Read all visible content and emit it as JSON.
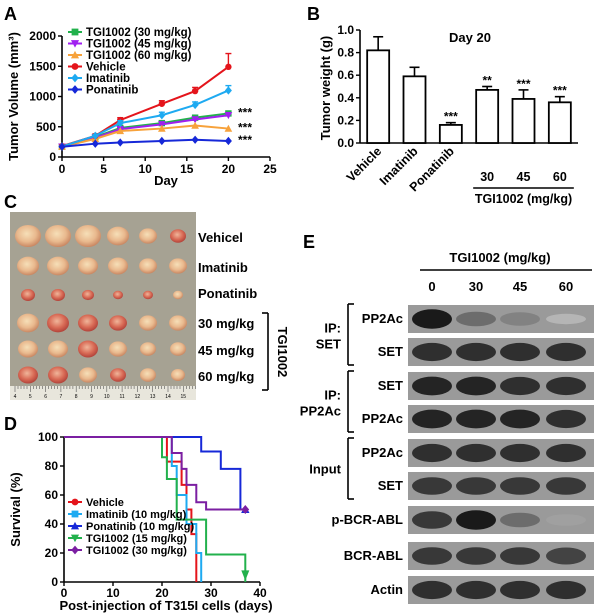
{
  "panels": {
    "A": "A",
    "B": "B",
    "C": "C",
    "D": "D",
    "E": "E"
  },
  "chart_data": [
    {
      "type": "line",
      "panel": "A",
      "xlabel": "Day",
      "ylabel": "Tumor Volume (mm³)",
      "xlim": [
        0,
        25
      ],
      "ylim": [
        0,
        2000
      ],
      "xticks": [
        "0",
        "5",
        "10",
        "15",
        "20",
        "25"
      ],
      "yticks": [
        "0",
        "500",
        "1000",
        "1500",
        "2000"
      ],
      "x": [
        0,
        4,
        7,
        12,
        16,
        20
      ],
      "series": [
        {
          "name": "TGI1002 (30 mg/kg)",
          "color": "#22b14c",
          "marker": "square",
          "values": [
            170,
            330,
            480,
            560,
            650,
            720
          ],
          "sig": "***"
        },
        {
          "name": "TGI1002 (45 mg/kg)",
          "color": "#a020f0",
          "marker": "tri-down",
          "values": [
            170,
            320,
            460,
            540,
            620,
            690
          ],
          "sig": ""
        },
        {
          "name": "TGI1002 (60 mg/kg)",
          "color": "#f7a23b",
          "marker": "tri-up",
          "values": [
            170,
            300,
            430,
            470,
            520,
            470
          ],
          "sig": "***"
        },
        {
          "name": "Vehicle",
          "color": "#e4141b",
          "marker": "circle",
          "values": [
            180,
            350,
            610,
            880,
            1090,
            1490
          ],
          "sig": ""
        },
        {
          "name": "Imatinib",
          "color": "#1eaaf1",
          "marker": "diamond",
          "values": [
            175,
            350,
            560,
            690,
            860,
            1100
          ],
          "sig": ""
        },
        {
          "name": "Ponatinib",
          "color": "#1628d8",
          "marker": "diamond",
          "values": [
            170,
            220,
            240,
            265,
            285,
            265
          ],
          "sig": "***"
        }
      ]
    },
    {
      "type": "bar",
      "panel": "B",
      "title": "Day 20",
      "ylabel": "Tumor weight (g)",
      "ylim": [
        0,
        1.0
      ],
      "yticks": [
        "0.0",
        "0.2",
        "0.4",
        "0.6",
        "0.8",
        "1.0"
      ],
      "categories": [
        "Vehicle",
        "Imatinib",
        "Ponatinib",
        "30",
        "45",
        "60"
      ],
      "values": [
        0.82,
        0.59,
        0.16,
        0.47,
        0.39,
        0.36
      ],
      "errors": [
        0.12,
        0.08,
        0.02,
        0.03,
        0.08,
        0.05
      ],
      "sig": [
        "",
        "",
        "***",
        "**",
        "***",
        "***"
      ],
      "group_label": "TGI1002 (mg/kg)"
    },
    {
      "type": "line",
      "panel": "D",
      "xlabel": "Post-injection of T315I cells (days)",
      "ylabel": "Survival (%)",
      "xlim": [
        0,
        40
      ],
      "ylim": [
        0,
        100
      ],
      "xticks": [
        "0",
        "10",
        "20",
        "30",
        "40"
      ],
      "yticks": [
        "0",
        "20",
        "40",
        "60",
        "80",
        "100"
      ],
      "series": [
        {
          "name": "Vehicle",
          "color": "#e4141b",
          "marker": "circle",
          "steps": [
            [
              0,
              100
            ],
            [
              21,
              100
            ],
            [
              21,
              83
            ],
            [
              24,
              83
            ],
            [
              24,
              67
            ],
            [
              25,
              67
            ],
            [
              25,
              50
            ],
            [
              26,
              50
            ],
            [
              26,
              33
            ],
            [
              27,
              33
            ],
            [
              27,
              17
            ],
            [
              27,
              0
            ]
          ]
        },
        {
          "name": "Imatinib (10 mg/kg)",
          "color": "#1eaaf1",
          "marker": "square",
          "steps": [
            [
              0,
              100
            ],
            [
              22,
              100
            ],
            [
              22,
              80
            ],
            [
              23,
              80
            ],
            [
              23,
              60
            ],
            [
              25,
              60
            ],
            [
              25,
              40
            ],
            [
              27,
              40
            ],
            [
              27,
              20
            ],
            [
              28,
              20
            ],
            [
              28,
              0
            ]
          ]
        },
        {
          "name": "Ponatinib (10 mg/kg)",
          "color": "#1628d8",
          "marker": "tri-up",
          "steps": [
            [
              0,
              100
            ],
            [
              28,
              100
            ],
            [
              28,
              90
            ],
            [
              32,
              90
            ],
            [
              32,
              78
            ],
            [
              36,
              78
            ],
            [
              36,
              50
            ],
            [
              37,
              50
            ]
          ]
        },
        {
          "name": "TGI1002 (15 mg/kg)",
          "color": "#22b14c",
          "marker": "tri-down",
          "steps": [
            [
              0,
              100
            ],
            [
              20,
              100
            ],
            [
              20,
              86
            ],
            [
              21,
              86
            ],
            [
              21,
              71
            ],
            [
              23,
              71
            ],
            [
              23,
              43
            ],
            [
              29,
              43
            ],
            [
              29,
              19
            ],
            [
              37,
              19
            ],
            [
              37,
              0
            ]
          ]
        },
        {
          "name": "TGI1002 (30 mg/kg)",
          "color": "#7b1fa2",
          "marker": "diamond",
          "steps": [
            [
              0,
              100
            ],
            [
              22,
              100
            ],
            [
              22,
              89
            ],
            [
              24,
              89
            ],
            [
              24,
              78
            ],
            [
              25,
              78
            ],
            [
              25,
              67
            ],
            [
              27,
              67
            ],
            [
              27,
              55
            ],
            [
              29,
              55
            ],
            [
              29,
              50
            ],
            [
              37,
              50
            ]
          ]
        }
      ]
    }
  ],
  "panelC": {
    "rows": [
      "Vehicel",
      "Imatinib",
      "Ponatinib",
      "30 mg/kg",
      "45 mg/kg",
      "60 mg/kg"
    ],
    "group_label": "TGI1002",
    "ruler_numbers": [
      "4",
      "5",
      "6",
      "7",
      "8",
      "9",
      "10",
      "11",
      "12",
      "13",
      "14",
      "15"
    ]
  },
  "panelE": {
    "header": "TGI1002 (mg/kg)",
    "lanes": [
      "0",
      "30",
      "45",
      "60"
    ],
    "groups": [
      {
        "label": [
          "IP:",
          "SET"
        ],
        "rows": [
          {
            "label": "PP2Ac",
            "intensity": [
              0.95,
              0.55,
              0.45,
              0.2
            ]
          },
          {
            "label": "SET",
            "intensity": [
              0.85,
              0.85,
              0.85,
              0.85
            ]
          }
        ]
      },
      {
        "label": [
          "IP:",
          "PP2Ac"
        ],
        "rows": [
          {
            "label": "SET",
            "intensity": [
              0.9,
              0.9,
              0.85,
              0.85
            ]
          },
          {
            "label": "PP2Ac",
            "intensity": [
              0.9,
              0.9,
              0.9,
              0.85
            ]
          }
        ]
      },
      {
        "label": [
          "Input"
        ],
        "rows": [
          {
            "label": "PP2Ac",
            "intensity": [
              0.85,
              0.85,
              0.85,
              0.85
            ]
          },
          {
            "label": "SET",
            "intensity": [
              0.8,
              0.8,
              0.8,
              0.8
            ]
          }
        ]
      },
      {
        "label": [
          ""
        ],
        "rows": [
          {
            "label": "p-BCR-ABL",
            "intensity": [
              0.8,
              0.95,
              0.55,
              0.3
            ]
          },
          {
            "label": "BCR-ABL",
            "intensity": [
              0.8,
              0.8,
              0.8,
              0.75
            ]
          },
          {
            "label": "Actin",
            "intensity": [
              0.85,
              0.85,
              0.85,
              0.85
            ]
          }
        ]
      }
    ]
  }
}
